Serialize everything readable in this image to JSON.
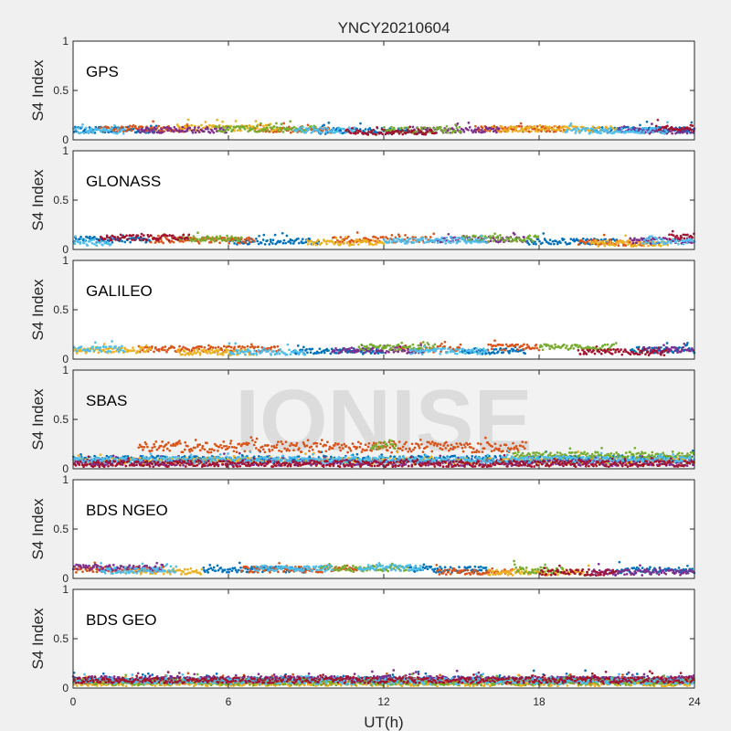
{
  "figure": {
    "title": "YNCY20210604",
    "watermark": "IONISE",
    "background": "#f0f0f0"
  },
  "chart_data": {
    "type": "scatter",
    "xlabel": "UT(h)",
    "ylabel": "S4 Index",
    "xlim": [
      0,
      24
    ],
    "ylim": [
      0,
      1
    ],
    "xticks": [
      "0",
      "6",
      "12",
      "18",
      "24"
    ],
    "yticks": [
      "0",
      "0.5",
      "1"
    ],
    "grid": false,
    "colors": [
      "#0072BD",
      "#D95319",
      "#EDB120",
      "#7E2F8E",
      "#77AC30",
      "#4DBEEE",
      "#A2142F"
    ],
    "panels": [
      {
        "name": "GPS",
        "series": [
          {
            "color": "#0072BD",
            "segments": [
              [
                0,
                3.5,
                0.1
              ],
              [
                9.5,
                13,
                0.09
              ],
              [
                20,
                24,
                0.1
              ]
            ]
          },
          {
            "color": "#D95319",
            "segments": [
              [
                1,
                4.5,
                0.11
              ],
              [
                7,
                10,
                0.1
              ],
              [
                15.5,
                19,
                0.11
              ]
            ]
          },
          {
            "color": "#EDB120",
            "segments": [
              [
                4,
                8,
                0.12
              ],
              [
                16,
                21,
                0.11
              ]
            ]
          },
          {
            "color": "#7E2F8E",
            "segments": [
              [
                2.5,
                6,
                0.1
              ],
              [
                13,
                16.5,
                0.1
              ],
              [
                21,
                24,
                0.09
              ]
            ]
          },
          {
            "color": "#77AC30",
            "segments": [
              [
                5.5,
                9.5,
                0.11
              ],
              [
                12,
                15,
                0.1
              ]
            ]
          },
          {
            "color": "#4DBEEE",
            "segments": [
              [
                0,
                2,
                0.09
              ],
              [
                8.5,
                11,
                0.1
              ],
              [
                19,
                23,
                0.09
              ]
            ]
          },
          {
            "color": "#A2142F",
            "segments": [
              [
                10.5,
                14,
                0.08
              ],
              [
                22.5,
                24,
                0.12
              ]
            ]
          }
        ]
      },
      {
        "name": "GLONASS",
        "series": [
          {
            "color": "#0072BD",
            "segments": [
              [
                0,
                3,
                0.1
              ],
              [
                6,
                9.5,
                0.08
              ],
              [
                17.5,
                21,
                0.08
              ]
            ]
          },
          {
            "color": "#D95319",
            "segments": [
              [
                3,
                7,
                0.09
              ],
              [
                10,
                14,
                0.1
              ],
              [
                19.5,
                22.5,
                0.07
              ]
            ]
          },
          {
            "color": "#EDB120",
            "segments": [
              [
                9,
                12,
                0.07
              ],
              [
                20,
                23,
                0.06
              ]
            ]
          },
          {
            "color": "#7E2F8E",
            "segments": [
              [
                14,
                17.5,
                0.1
              ],
              [
                21.5,
                24,
                0.09
              ]
            ]
          },
          {
            "color": "#77AC30",
            "segments": [
              [
                4,
                6.5,
                0.11
              ],
              [
                15,
                18,
                0.11
              ]
            ]
          },
          {
            "color": "#4DBEEE",
            "segments": [
              [
                0,
                1.5,
                0.07
              ],
              [
                12,
                16,
                0.09
              ],
              [
                22,
                24,
                0.08
              ]
            ]
          },
          {
            "color": "#A2142F",
            "segments": [
              [
                1,
                4.5,
                0.12
              ],
              [
                23,
                24,
                0.13
              ]
            ]
          }
        ]
      },
      {
        "name": "GALILEO",
        "series": [
          {
            "color": "#0072BD",
            "segments": [
              [
                8.5,
                12,
                0.08
              ],
              [
                15,
                17.5,
                0.08
              ],
              [
                21.5,
                24,
                0.09
              ]
            ]
          },
          {
            "color": "#D95319",
            "segments": [
              [
                2.5,
                8,
                0.1
              ],
              [
                12.5,
                15,
                0.1
              ],
              [
                16,
                18,
                0.12
              ]
            ]
          },
          {
            "color": "#EDB120",
            "segments": [
              [
                0,
                3,
                0.09
              ],
              [
                4,
                7,
                0.07
              ]
            ]
          },
          {
            "color": "#7E2F8E",
            "segments": [
              [
                10,
                13.5,
                0.09
              ],
              [
                22,
                24,
                0.09
              ]
            ]
          },
          {
            "color": "#77AC30",
            "segments": [
              [
                11,
                14,
                0.12
              ],
              [
                18,
                21,
                0.12
              ]
            ]
          },
          {
            "color": "#4DBEEE",
            "segments": [
              [
                0,
                2,
                0.1
              ],
              [
                6,
                9,
                0.07
              ],
              [
                13,
                16,
                0.08
              ]
            ]
          },
          {
            "color": "#A2142F",
            "segments": [
              [
                19.5,
                23,
                0.07
              ]
            ]
          }
        ]
      },
      {
        "name": "SBAS",
        "series": [
          {
            "color": "#0072BD",
            "segments": [
              [
                0,
                24,
                0.1
              ]
            ]
          },
          {
            "color": "#D95319",
            "segments": [
              [
                2.5,
                17.5,
                0.22
              ]
            ]
          },
          {
            "color": "#EDB120",
            "segments": [
              [
                0,
                24,
                0.08
              ]
            ]
          },
          {
            "color": "#7E2F8E",
            "segments": [
              [
                0,
                24,
                0.06
              ]
            ]
          },
          {
            "color": "#77AC30",
            "segments": [
              [
                11.5,
                12.5,
                0.25
              ],
              [
                17,
                24,
                0.14
              ]
            ]
          },
          {
            "color": "#4DBEEE",
            "segments": [
              [
                0,
                24,
                0.09
              ]
            ]
          },
          {
            "color": "#A2142F",
            "segments": [
              [
                0,
                24,
                0.05
              ]
            ]
          }
        ]
      },
      {
        "name": "BDS NGEO",
        "series": [
          {
            "color": "#0072BD",
            "segments": [
              [
                5,
                9,
                0.09
              ],
              [
                13,
                16,
                0.09
              ],
              [
                21,
                24,
                0.08
              ]
            ]
          },
          {
            "color": "#D95319",
            "segments": [
              [
                0,
                3.5,
                0.09
              ],
              [
                6.5,
                11,
                0.09
              ],
              [
                14,
                17,
                0.07
              ]
            ]
          },
          {
            "color": "#EDB120",
            "segments": [
              [
                2,
                5,
                0.07
              ],
              [
                16,
                20,
                0.06
              ]
            ]
          },
          {
            "color": "#7E2F8E",
            "segments": [
              [
                0,
                3.5,
                0.11
              ],
              [
                20,
                24,
                0.06
              ]
            ]
          },
          {
            "color": "#77AC30",
            "segments": [
              [
                9.5,
                13,
                0.1
              ],
              [
                17,
                19,
                0.08
              ]
            ]
          },
          {
            "color": "#4DBEEE",
            "segments": [
              [
                1,
                4,
                0.08
              ],
              [
                7,
                10,
                0.1
              ],
              [
                11,
                13.5,
                0.11
              ]
            ]
          },
          {
            "color": "#A2142F",
            "segments": [
              [
                18,
                21,
                0.06
              ]
            ]
          }
        ]
      },
      {
        "name": "BDS GEO",
        "series": [
          {
            "color": "#0072BD",
            "segments": [
              [
                0,
                24,
                0.08
              ]
            ]
          },
          {
            "color": "#D95319",
            "segments": [
              [
                0,
                24,
                0.07
              ]
            ]
          },
          {
            "color": "#EDB120",
            "segments": [
              [
                0,
                24,
                0.05
              ]
            ]
          },
          {
            "color": "#7E2F8E",
            "segments": [
              [
                0,
                24,
                0.09
              ]
            ]
          },
          {
            "color": "#77AC30",
            "segments": [
              [
                0,
                24,
                0.06
              ]
            ]
          },
          {
            "color": "#4DBEEE",
            "segments": [
              [
                0,
                24,
                0.07
              ]
            ]
          },
          {
            "color": "#A2142F",
            "segments": [
              [
                0,
                24,
                0.08
              ]
            ]
          }
        ]
      }
    ]
  }
}
